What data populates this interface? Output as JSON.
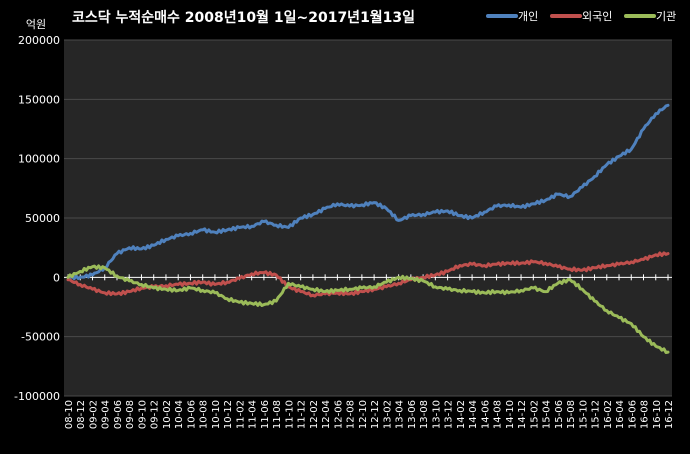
{
  "chart_data": {
    "type": "line",
    "title": "코스닥 누적순매수 2008년10월 1일~2017년1월13일",
    "ylabel": "억원",
    "ylim": [
      -100000,
      200000
    ],
    "yticks": [
      200000,
      150000,
      100000,
      50000,
      0,
      -50000,
      -100000
    ],
    "grid": true,
    "legend": "top-right",
    "x_tick_labels": [
      "08-10",
      "08-12",
      "09-02",
      "09-04",
      "09-06",
      "09-08",
      "09-10",
      "09-12",
      "10-02",
      "10-04",
      "10-06",
      "10-08",
      "10-10",
      "10-12",
      "11-02",
      "11-04",
      "11-06",
      "11-08",
      "11-10",
      "11-12",
      "12-02",
      "12-04",
      "12-06",
      "12-08",
      "12-10",
      "12-12",
      "13-02",
      "13-04",
      "13-06",
      "13-08",
      "13-10",
      "13-12",
      "14-02",
      "14-04",
      "14-06",
      "14-08",
      "14-10",
      "14-12",
      "15-02",
      "15-04",
      "15-06",
      "15-08",
      "15-10",
      "15-12",
      "16-02",
      "16-04",
      "16-06",
      "16-08",
      "16-10",
      "16-12"
    ],
    "series": [
      {
        "name": "개인",
        "color": "#4f81bd",
        "values": [
          0,
          0,
          2000,
          8000,
          20000,
          25000,
          24000,
          27000,
          32000,
          35000,
          37000,
          40000,
          38000,
          40000,
          42000,
          43000,
          47000,
          44000,
          42000,
          50000,
          53000,
          58000,
          62000,
          60000,
          61000,
          63000,
          58000,
          48000,
          52000,
          53000,
          55000,
          56000,
          52000,
          50000,
          55000,
          60000,
          61000,
          59000,
          62000,
          65000,
          70000,
          68000,
          76000,
          85000,
          95000,
          102000,
          108000,
          125000,
          138000,
          145000
        ]
      },
      {
        "name": "외국인",
        "color": "#c0504d",
        "values": [
          -2000,
          -6000,
          -10000,
          -13000,
          -14000,
          -12000,
          -9000,
          -8000,
          -7000,
          -6000,
          -5000,
          -4000,
          -6000,
          -4000,
          -1000,
          3000,
          4000,
          2000,
          -8000,
          -12000,
          -15000,
          -14000,
          -13000,
          -14000,
          -12000,
          -10000,
          -8000,
          -5000,
          -2000,
          0,
          2000,
          5000,
          10000,
          11000,
          10000,
          11000,
          12000,
          12000,
          13000,
          12000,
          9000,
          7000,
          6000,
          8000,
          10000,
          11000,
          13000,
          15000,
          19000,
          20000
        ]
      },
      {
        "name": "기관",
        "color": "#9bbb59",
        "values": [
          0,
          5000,
          9000,
          8000,
          1000,
          -3000,
          -6000,
          -9000,
          -10000,
          -11000,
          -9000,
          -11000,
          -13000,
          -18000,
          -21000,
          -22000,
          -23000,
          -20000,
          -5000,
          -8000,
          -10000,
          -12000,
          -11000,
          -10000,
          -9000,
          -8000,
          -4000,
          0,
          -1000,
          -3000,
          -8000,
          -10000,
          -11000,
          -12000,
          -13000,
          -12000,
          -13000,
          -11000,
          -9000,
          -12000,
          -5000,
          -2000,
          -10000,
          -20000,
          -28000,
          -34000,
          -39000,
          -50000,
          -58000,
          -63000
        ]
      }
    ]
  }
}
